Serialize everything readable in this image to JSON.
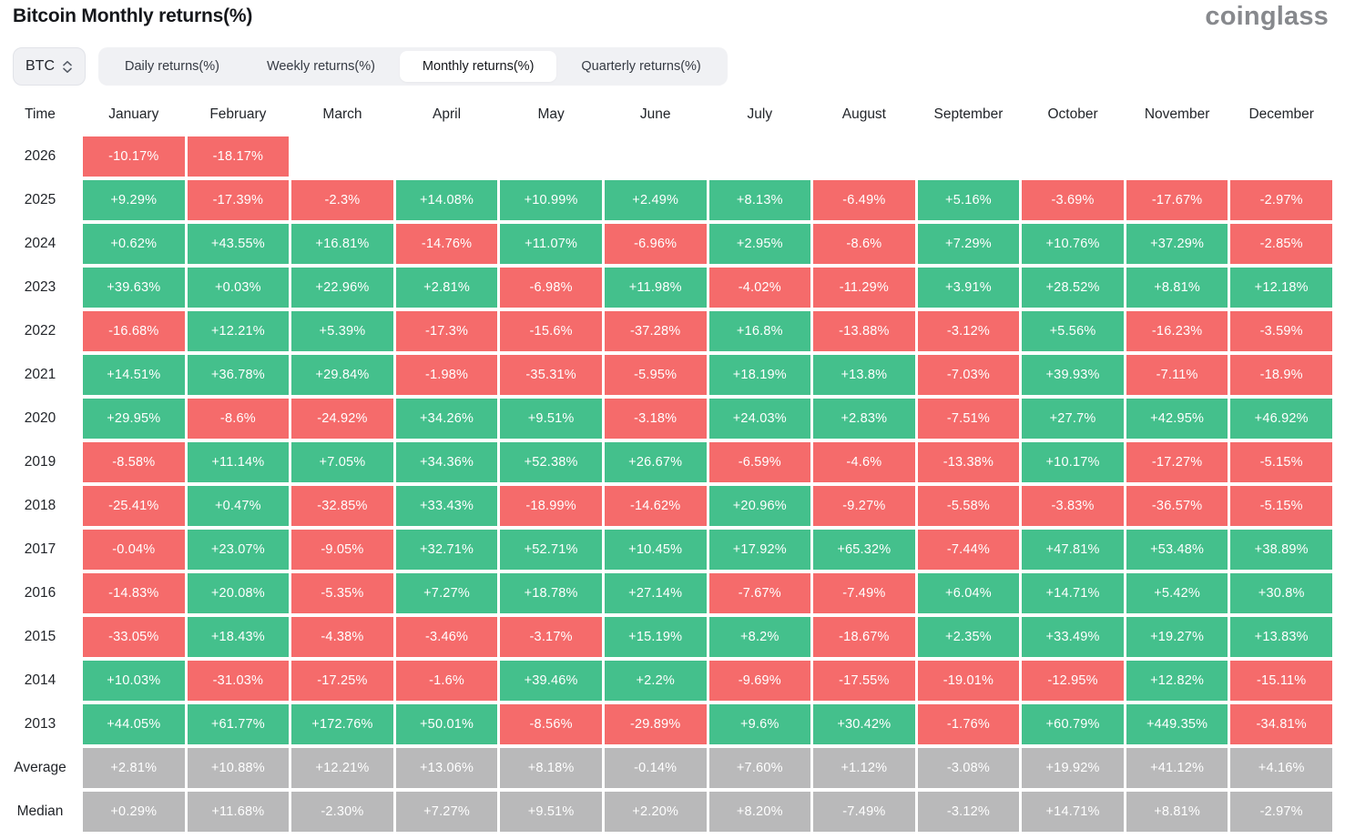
{
  "header": {
    "title": "Bitcoin Monthly returns(%)",
    "logo": "coinglass"
  },
  "controls": {
    "symbol": "BTC",
    "tabs": [
      {
        "label": "Daily returns(%)",
        "active": false
      },
      {
        "label": "Weekly returns(%)",
        "active": false
      },
      {
        "label": "Monthly returns(%)",
        "active": true
      },
      {
        "label": "Quarterly returns(%)",
        "active": false
      }
    ]
  },
  "chart_data": {
    "type": "heatmap",
    "title": "Bitcoin Monthly returns(%)",
    "unit": "%",
    "row_header": "Time",
    "columns": [
      "January",
      "February",
      "March",
      "April",
      "May",
      "June",
      "July",
      "August",
      "September",
      "October",
      "November",
      "December"
    ],
    "rows": [
      {
        "label": "2026",
        "summary": false,
        "values": [
          "-10.17%",
          "-18.17%",
          "",
          "",
          "",
          "",
          "",
          "",
          "",
          "",
          "",
          ""
        ]
      },
      {
        "label": "2025",
        "summary": false,
        "values": [
          "+9.29%",
          "-17.39%",
          "-2.3%",
          "+14.08%",
          "+10.99%",
          "+2.49%",
          "+8.13%",
          "-6.49%",
          "+5.16%",
          "-3.69%",
          "-17.67%",
          "-2.97%"
        ]
      },
      {
        "label": "2024",
        "summary": false,
        "values": [
          "+0.62%",
          "+43.55%",
          "+16.81%",
          "-14.76%",
          "+11.07%",
          "-6.96%",
          "+2.95%",
          "-8.6%",
          "+7.29%",
          "+10.76%",
          "+37.29%",
          "-2.85%"
        ]
      },
      {
        "label": "2023",
        "summary": false,
        "values": [
          "+39.63%",
          "+0.03%",
          "+22.96%",
          "+2.81%",
          "-6.98%",
          "+11.98%",
          "-4.02%",
          "-11.29%",
          "+3.91%",
          "+28.52%",
          "+8.81%",
          "+12.18%"
        ]
      },
      {
        "label": "2022",
        "summary": false,
        "values": [
          "-16.68%",
          "+12.21%",
          "+5.39%",
          "-17.3%",
          "-15.6%",
          "-37.28%",
          "+16.8%",
          "-13.88%",
          "-3.12%",
          "+5.56%",
          "-16.23%",
          "-3.59%"
        ]
      },
      {
        "label": "2021",
        "summary": false,
        "values": [
          "+14.51%",
          "+36.78%",
          "+29.84%",
          "-1.98%",
          "-35.31%",
          "-5.95%",
          "+18.19%",
          "+13.8%",
          "-7.03%",
          "+39.93%",
          "-7.11%",
          "-18.9%"
        ]
      },
      {
        "label": "2020",
        "summary": false,
        "values": [
          "+29.95%",
          "-8.6%",
          "-24.92%",
          "+34.26%",
          "+9.51%",
          "-3.18%",
          "+24.03%",
          "+2.83%",
          "-7.51%",
          "+27.7%",
          "+42.95%",
          "+46.92%"
        ]
      },
      {
        "label": "2019",
        "summary": false,
        "values": [
          "-8.58%",
          "+11.14%",
          "+7.05%",
          "+34.36%",
          "+52.38%",
          "+26.67%",
          "-6.59%",
          "-4.6%",
          "-13.38%",
          "+10.17%",
          "-17.27%",
          "-5.15%"
        ]
      },
      {
        "label": "2018",
        "summary": false,
        "values": [
          "-25.41%",
          "+0.47%",
          "-32.85%",
          "+33.43%",
          "-18.99%",
          "-14.62%",
          "+20.96%",
          "-9.27%",
          "-5.58%",
          "-3.83%",
          "-36.57%",
          "-5.15%"
        ]
      },
      {
        "label": "2017",
        "summary": false,
        "values": [
          "-0.04%",
          "+23.07%",
          "-9.05%",
          "+32.71%",
          "+52.71%",
          "+10.45%",
          "+17.92%",
          "+65.32%",
          "-7.44%",
          "+47.81%",
          "+53.48%",
          "+38.89%"
        ]
      },
      {
        "label": "2016",
        "summary": false,
        "values": [
          "-14.83%",
          "+20.08%",
          "-5.35%",
          "+7.27%",
          "+18.78%",
          "+27.14%",
          "-7.67%",
          "-7.49%",
          "+6.04%",
          "+14.71%",
          "+5.42%",
          "+30.8%"
        ]
      },
      {
        "label": "2015",
        "summary": false,
        "values": [
          "-33.05%",
          "+18.43%",
          "-4.38%",
          "-3.46%",
          "-3.17%",
          "+15.19%",
          "+8.2%",
          "-18.67%",
          "+2.35%",
          "+33.49%",
          "+19.27%",
          "+13.83%"
        ]
      },
      {
        "label": "2014",
        "summary": false,
        "values": [
          "+10.03%",
          "-31.03%",
          "-17.25%",
          "-1.6%",
          "+39.46%",
          "+2.2%",
          "-9.69%",
          "-17.55%",
          "-19.01%",
          "-12.95%",
          "+12.82%",
          "-15.11%"
        ]
      },
      {
        "label": "2013",
        "summary": false,
        "values": [
          "+44.05%",
          "+61.77%",
          "+172.76%",
          "+50.01%",
          "-8.56%",
          "-29.89%",
          "+9.6%",
          "+30.42%",
          "-1.76%",
          "+60.79%",
          "+449.35%",
          "-34.81%"
        ]
      },
      {
        "label": "Average",
        "summary": true,
        "values": [
          "+2.81%",
          "+10.88%",
          "+12.21%",
          "+13.06%",
          "+8.18%",
          "-0.14%",
          "+7.60%",
          "+1.12%",
          "-3.08%",
          "+19.92%",
          "+41.12%",
          "+4.16%"
        ]
      },
      {
        "label": "Median",
        "summary": true,
        "values": [
          "+0.29%",
          "+11.68%",
          "-2.30%",
          "+7.27%",
          "+9.51%",
          "+2.20%",
          "+8.20%",
          "-7.49%",
          "-3.12%",
          "+14.71%",
          "+8.81%",
          "-2.97%"
        ]
      }
    ],
    "colors": {
      "positive": "#44c08c",
      "negative": "#f56b6b",
      "summary": "#b9b9ba"
    },
    "legend_position": "none",
    "grid": false
  }
}
